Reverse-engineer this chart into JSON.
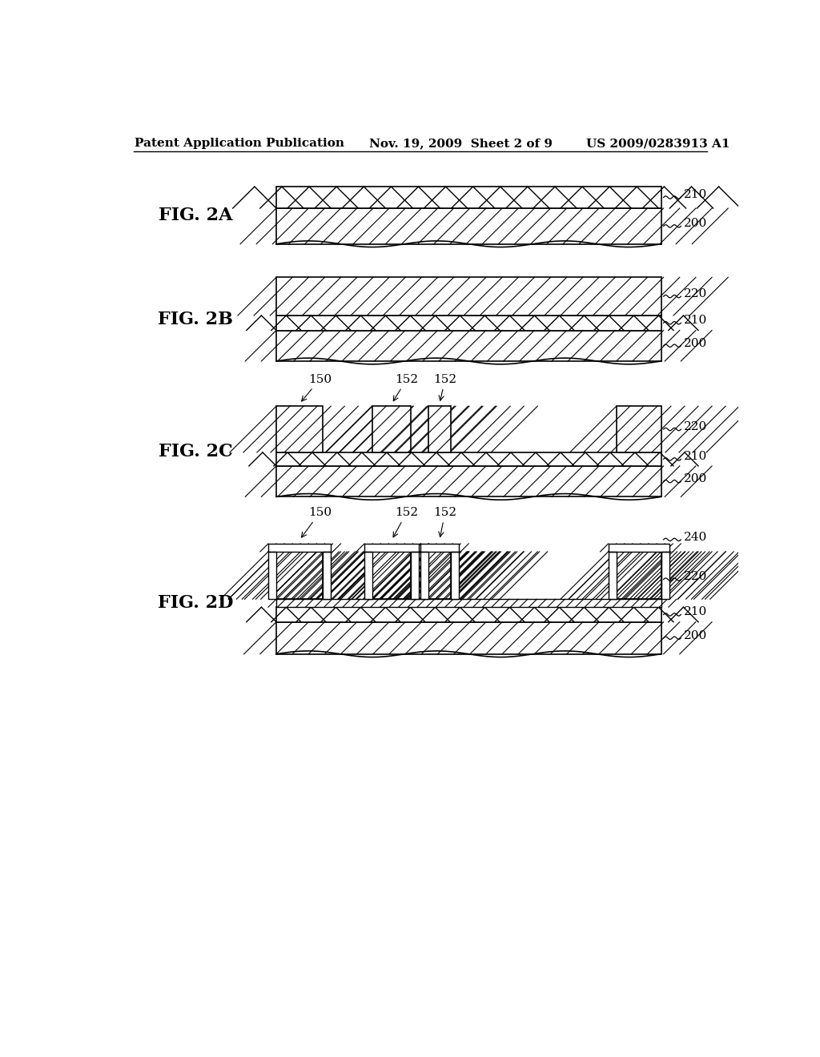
{
  "bg_color": "#ffffff",
  "header_left": "Patent Application Publication",
  "header_mid": "Nov. 19, 2009  Sheet 2 of 9",
  "header_right": "US 2009/0283913 A1",
  "header_fontsize": 11,
  "fig_label_fontsize": 16,
  "ref_fontsize": 11
}
